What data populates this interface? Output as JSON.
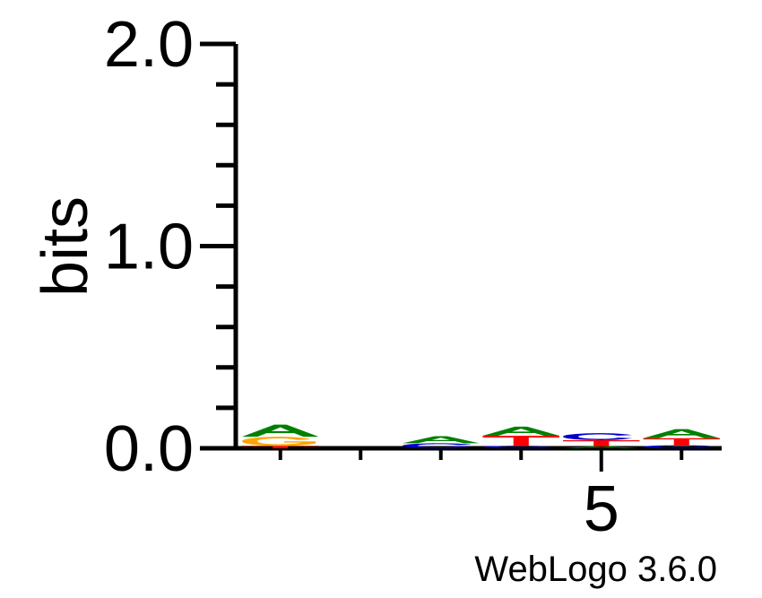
{
  "chart_data": {
    "type": "sequence-logo",
    "ylabel": "bits",
    "ylim": [
      0,
      2.0
    ],
    "y_ticks": [
      "0.0",
      "1.0",
      "2.0"
    ],
    "x_tick_labels": [
      {
        "position": 5,
        "label": "5"
      }
    ],
    "footer": "WebLogo 3.6.0",
    "alphabet_colors": {
      "A": "#008000",
      "C": "#0000cc",
      "G": "#ffa500",
      "T": "#ff0000"
    },
    "positions": [
      {
        "position": 1,
        "letters": [
          {
            "base": "T",
            "bits": 0.012
          },
          {
            "base": "G",
            "bits": 0.045
          },
          {
            "base": "A",
            "bits": 0.06
          }
        ]
      },
      {
        "position": 2,
        "letters": []
      },
      {
        "position": 3,
        "letters": [
          {
            "base": "C",
            "bits": 0.025
          },
          {
            "base": "A",
            "bits": 0.035
          }
        ]
      },
      {
        "position": 4,
        "letters": [
          {
            "base": "C",
            "bits": 0.012
          },
          {
            "base": "T",
            "bits": 0.05
          },
          {
            "base": "A",
            "bits": 0.045
          }
        ]
      },
      {
        "position": 5,
        "letters": [
          {
            "base": "A",
            "bits": 0.01
          },
          {
            "base": "T",
            "bits": 0.03
          },
          {
            "base": "C",
            "bits": 0.035
          }
        ]
      },
      {
        "position": 6,
        "letters": [
          {
            "base": "C",
            "bits": 0.015
          },
          {
            "base": "T",
            "bits": 0.035
          },
          {
            "base": "A",
            "bits": 0.045
          }
        ]
      }
    ]
  }
}
